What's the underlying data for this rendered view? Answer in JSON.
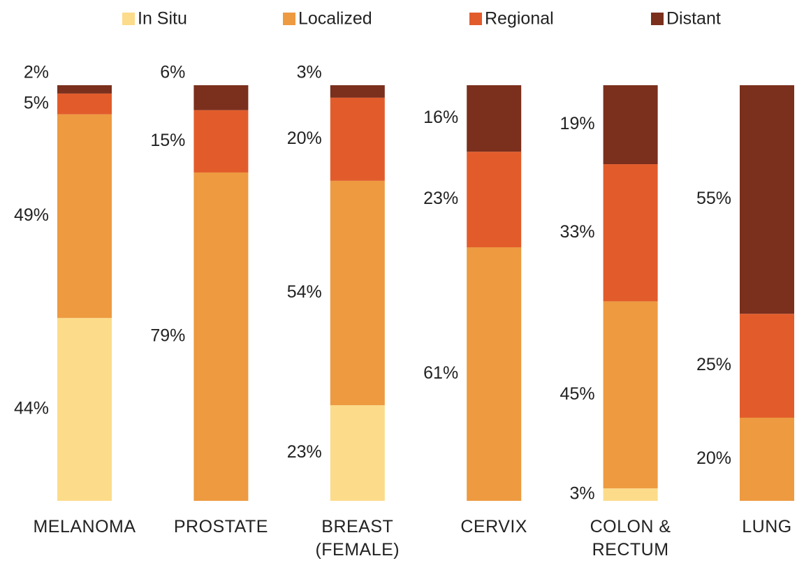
{
  "chart_data": {
    "type": "stacked_bar",
    "categories": [
      "MELANOMA",
      "PROSTATE",
      "BREAST (FEMALE)",
      "CERVIX",
      "COLON & RECTUM",
      "LUNG"
    ],
    "series": [
      {
        "name": "In Situ",
        "color": "#fcdc8a",
        "values": [
          44,
          null,
          23,
          null,
          3,
          null
        ],
        "value_labels": [
          "44%",
          null,
          "23%",
          null,
          "3%",
          null
        ]
      },
      {
        "name": "Localized",
        "color": "#ed9a40",
        "values": [
          49,
          79,
          54,
          61,
          45,
          20
        ],
        "value_labels": [
          "49%",
          "79%",
          "54%",
          "61%",
          "45%",
          "20%"
        ]
      },
      {
        "name": "Regional",
        "color": "#e25c2b",
        "values": [
          5,
          15,
          20,
          23,
          33,
          25
        ],
        "value_labels": [
          "5%",
          "15%",
          "20%",
          "23%",
          "33%",
          "25%"
        ]
      },
      {
        "name": "Distant",
        "color": "#7b2f1d",
        "values": [
          2,
          6,
          3,
          16,
          19,
          55
        ],
        "value_labels": [
          "2%",
          "6%",
          "3%",
          "16%",
          "19%",
          "55%"
        ]
      }
    ],
    "ylim": [
      0,
      100
    ]
  }
}
